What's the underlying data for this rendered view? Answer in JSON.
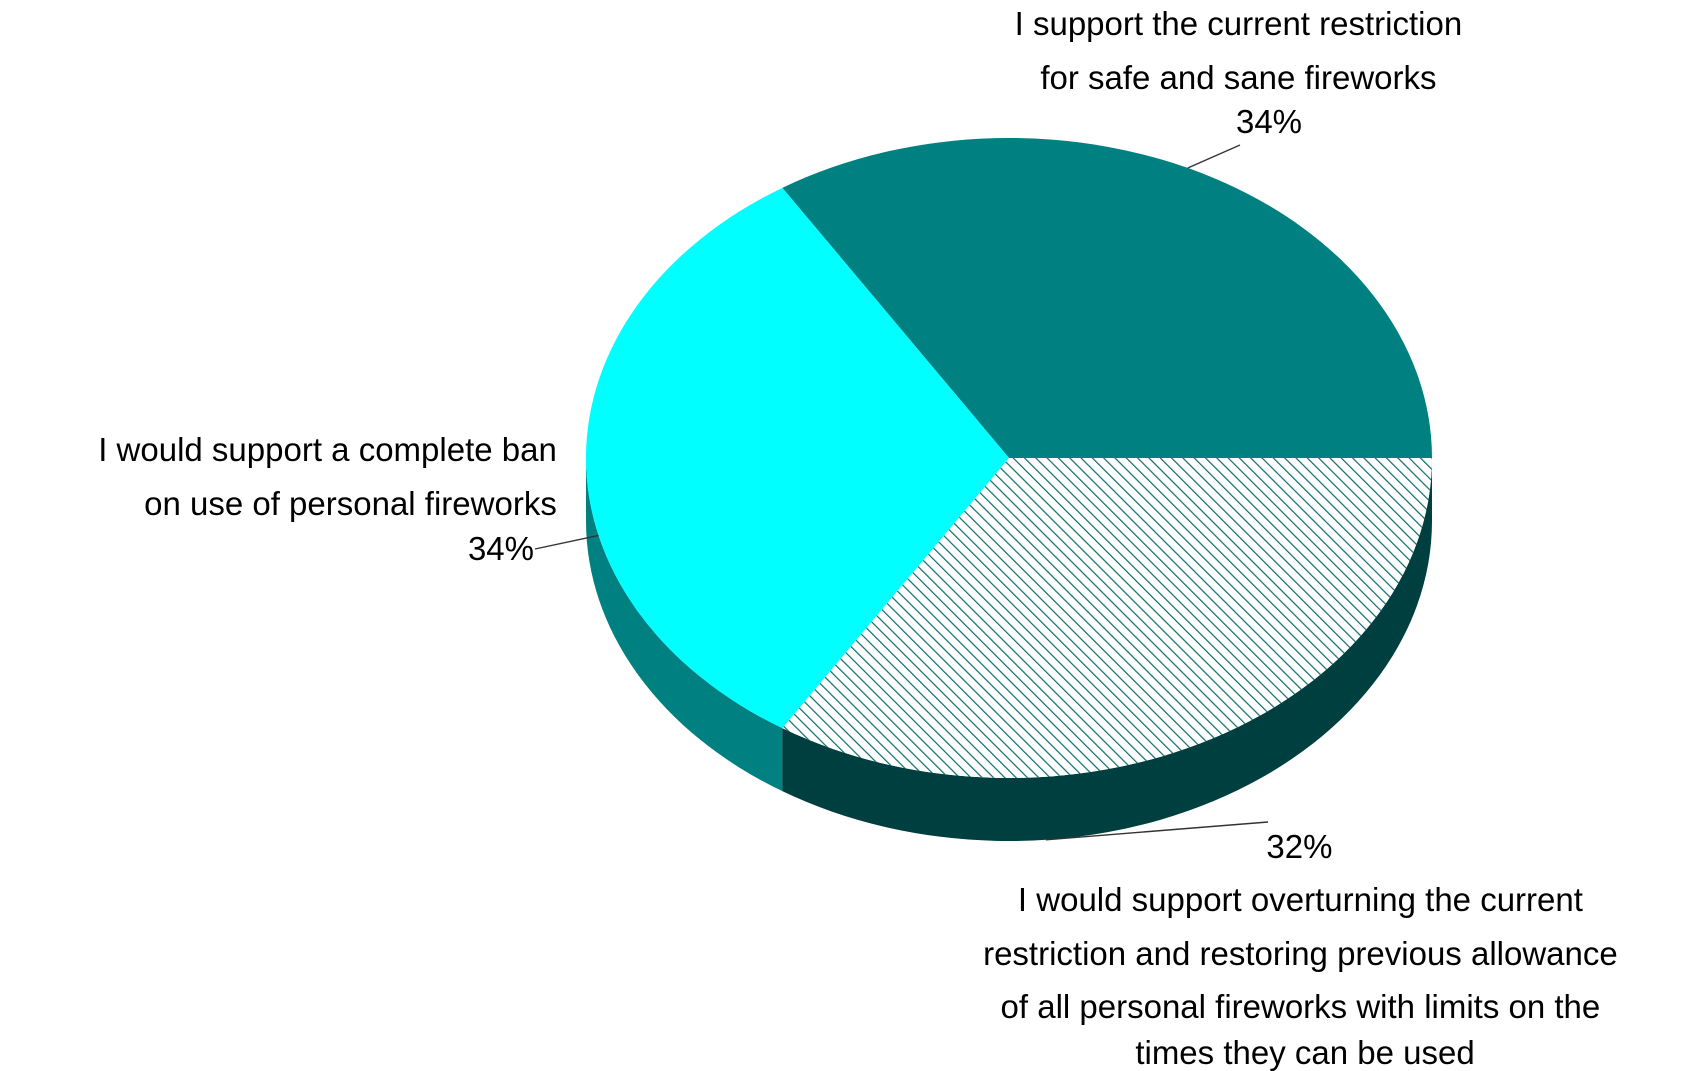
{
  "chart_data": {
    "type": "pie",
    "title": "",
    "style": "3d-pie",
    "slices": [
      {
        "label_lines": [
          "I support the current restriction",
          "for safe and sane fireworks"
        ],
        "value": 34,
        "value_label": "34%",
        "color": "#008080",
        "pattern": "solid"
      },
      {
        "label_lines": [
          "I would support overturning the current",
          "restriction and restoring previous allowance",
          "of all personal fireworks with limits on the",
          "times they can be used"
        ],
        "value": 32,
        "value_label": "32%",
        "color": "#00FFFF",
        "pattern": "solid"
      },
      {
        "label_lines": [
          "I would support a complete ban",
          "on use of personal fireworks"
        ],
        "value": 34,
        "value_label": "34%",
        "color": "#006666",
        "pattern": "diagonal-hatch"
      }
    ],
    "side_colors": {
      "teal": "#008080",
      "dark": "#003F3F"
    }
  }
}
